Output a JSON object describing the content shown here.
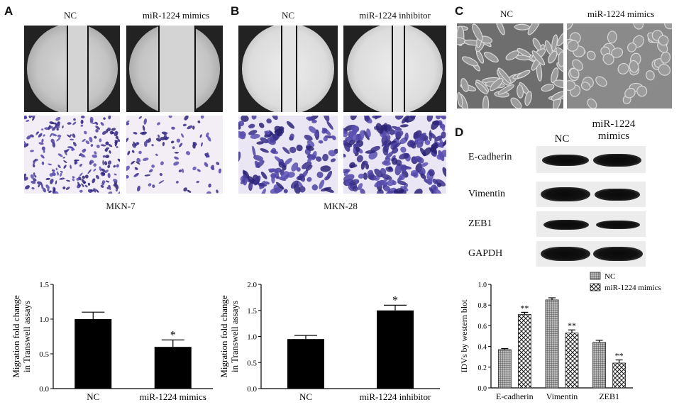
{
  "panels": {
    "A": {
      "label": "A",
      "col1": "NC",
      "col2": "miR-1224 mimics",
      "cell_line": "MKN-7"
    },
    "B": {
      "label": "B",
      "col1": "NC",
      "col2": "miR-1224 inhibitor",
      "cell_line": "MKN-28"
    },
    "C": {
      "label": "C",
      "col1": "NC",
      "col2": "miR-1224 mimics"
    },
    "D": {
      "label": "D",
      "col1": "NC",
      "col2_line1": "miR-1224",
      "col2_line2": "mimics",
      "proteins": [
        "E-cadherin",
        "Vimentin",
        "ZEB1",
        "GAPDH"
      ]
    }
  },
  "chart_data": [
    {
      "type": "bar",
      "ylabel_line1": "Migration fold change",
      "ylabel_line2": "in Transwell assays",
      "categories": [
        "NC",
        "miR-1224 mimics"
      ],
      "values": [
        1.0,
        0.6
      ],
      "errors": [
        0.1,
        0.1
      ],
      "significance": [
        "",
        "*"
      ],
      "ylim": [
        0,
        1.5
      ],
      "yticks": [
        "0.0",
        "0.5",
        "1.0",
        "1.5"
      ],
      "color": "#000000"
    },
    {
      "type": "bar",
      "ylabel_line1": "Migration fold change",
      "ylabel_line2": "in Transwell assays",
      "categories": [
        "NC",
        "miR-1224 inhibitor"
      ],
      "values": [
        0.95,
        1.5
      ],
      "errors": [
        0.07,
        0.1
      ],
      "significance": [
        "",
        "*"
      ],
      "ylim": [
        0,
        2.0
      ],
      "yticks": [
        "0.0",
        "0.5",
        "1.0",
        "1.5",
        "2.0"
      ],
      "color": "#000000"
    },
    {
      "type": "bar",
      "ylabel": "IDVs by western blot",
      "categories": [
        "E-cadherin",
        "Vimentin",
        "ZEB1"
      ],
      "series": [
        {
          "name": "NC",
          "values": [
            0.37,
            0.85,
            0.44
          ],
          "errors": [
            0.01,
            0.02,
            0.02
          ],
          "pattern": "grid"
        },
        {
          "name": "miR-1224 mimics",
          "values": [
            0.71,
            0.53,
            0.24
          ],
          "errors": [
            0.02,
            0.03,
            0.03
          ],
          "pattern": "check"
        }
      ],
      "significance": [
        "**",
        "**",
        "**"
      ],
      "ylim": [
        0,
        1.0
      ],
      "yticks": [
        "0.0",
        "0.2",
        "0.4",
        "0.6",
        "0.8",
        "1.0"
      ],
      "legend": "top-right"
    }
  ]
}
